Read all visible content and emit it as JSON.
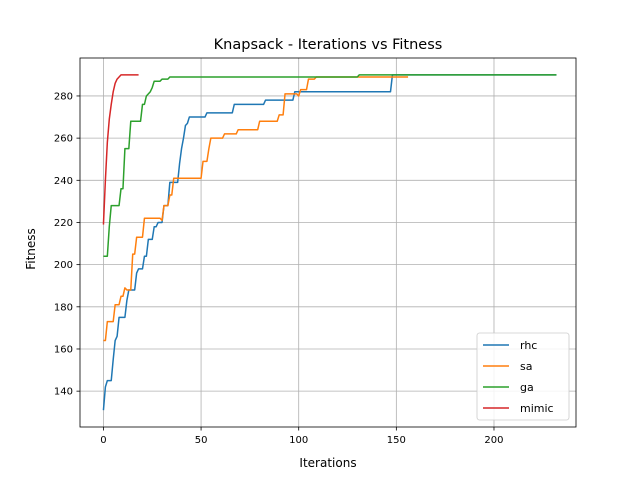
{
  "chart_data": {
    "type": "line",
    "title": "Knapsack - Iterations vs Fitness",
    "xlabel": "Iterations",
    "ylabel": "Fitness",
    "xlim": [
      -12,
      242
    ],
    "ylim": [
      123,
      298
    ],
    "xticks": [
      0,
      50,
      100,
      150,
      200
    ],
    "yticks": [
      140,
      160,
      180,
      200,
      220,
      240,
      260,
      280
    ],
    "grid": true,
    "legend_position": "lower right",
    "series": [
      {
        "name": "rhc",
        "color": "#1f77b4",
        "points": [
          [
            0,
            131
          ],
          [
            1,
            142
          ],
          [
            2,
            145
          ],
          [
            4,
            145
          ],
          [
            5,
            155
          ],
          [
            6,
            164
          ],
          [
            7,
            166
          ],
          [
            8,
            175
          ],
          [
            11,
            175
          ],
          [
            12,
            183
          ],
          [
            13,
            188
          ],
          [
            16,
            188
          ],
          [
            17,
            196
          ],
          [
            18,
            198
          ],
          [
            20,
            198
          ],
          [
            21,
            204
          ],
          [
            22,
            204
          ],
          [
            23,
            212
          ],
          [
            25,
            212
          ],
          [
            26,
            218
          ],
          [
            27,
            218
          ],
          [
            28,
            220
          ],
          [
            30,
            220
          ],
          [
            31,
            228
          ],
          [
            33,
            228
          ],
          [
            34,
            239
          ],
          [
            38,
            239
          ],
          [
            39,
            248
          ],
          [
            40,
            255
          ],
          [
            41,
            260
          ],
          [
            42,
            266
          ],
          [
            43,
            267
          ],
          [
            44,
            270
          ],
          [
            52,
            270
          ],
          [
            53,
            272
          ],
          [
            66,
            272
          ],
          [
            67,
            276
          ],
          [
            82,
            276
          ],
          [
            83,
            278
          ],
          [
            97,
            278
          ],
          [
            98,
            282
          ],
          [
            147,
            282
          ],
          [
            148,
            290
          ],
          [
            232,
            290
          ]
        ]
      },
      {
        "name": "sa",
        "color": "#ff7f0e",
        "points": [
          [
            0,
            164
          ],
          [
            1,
            164
          ],
          [
            2,
            173
          ],
          [
            5,
            173
          ],
          [
            6,
            181
          ],
          [
            8,
            181
          ],
          [
            9,
            185
          ],
          [
            10,
            185
          ],
          [
            11,
            189
          ],
          [
            12,
            188
          ],
          [
            14,
            188
          ],
          [
            15,
            205
          ],
          [
            16,
            205
          ],
          [
            17,
            213
          ],
          [
            20,
            213
          ],
          [
            21,
            222
          ],
          [
            29,
            222
          ],
          [
            30,
            221
          ],
          [
            31,
            228
          ],
          [
            33,
            228
          ],
          [
            34,
            233
          ],
          [
            35,
            233
          ],
          [
            36,
            241
          ],
          [
            50,
            241
          ],
          [
            51,
            249
          ],
          [
            53,
            249
          ],
          [
            54,
            255
          ],
          [
            55,
            260
          ],
          [
            61,
            260
          ],
          [
            62,
            262
          ],
          [
            68,
            262
          ],
          [
            69,
            264
          ],
          [
            79,
            264
          ],
          [
            80,
            268
          ],
          [
            89,
            268
          ],
          [
            90,
            271
          ],
          [
            92,
            271
          ],
          [
            93,
            281
          ],
          [
            99,
            281
          ],
          [
            100,
            280
          ],
          [
            101,
            283
          ],
          [
            104,
            283
          ],
          [
            105,
            288
          ],
          [
            108,
            288
          ],
          [
            109,
            289
          ],
          [
            156,
            289
          ]
        ]
      },
      {
        "name": "ga",
        "color": "#2ca02c",
        "points": [
          [
            0,
            204
          ],
          [
            2,
            204
          ],
          [
            3,
            218
          ],
          [
            4,
            228
          ],
          [
            8,
            228
          ],
          [
            9,
            236
          ],
          [
            10,
            236
          ],
          [
            11,
            255
          ],
          [
            13,
            255
          ],
          [
            14,
            268
          ],
          [
            19,
            268
          ],
          [
            20,
            276
          ],
          [
            21,
            276
          ],
          [
            22,
            280
          ],
          [
            23,
            281
          ],
          [
            24,
            282
          ],
          [
            25,
            284
          ],
          [
            26,
            287
          ],
          [
            29,
            287
          ],
          [
            30,
            288
          ],
          [
            33,
            288
          ],
          [
            34,
            289
          ],
          [
            130,
            289
          ],
          [
            131,
            290
          ],
          [
            232,
            290
          ]
        ]
      },
      {
        "name": "mimic",
        "color": "#d62728",
        "points": [
          [
            0,
            219
          ],
          [
            1,
            240
          ],
          [
            2,
            258
          ],
          [
            3,
            269
          ],
          [
            4,
            276
          ],
          [
            5,
            282
          ],
          [
            6,
            286
          ],
          [
            7,
            288
          ],
          [
            8,
            289
          ],
          [
            9,
            290
          ],
          [
            18,
            290
          ]
        ]
      }
    ]
  }
}
